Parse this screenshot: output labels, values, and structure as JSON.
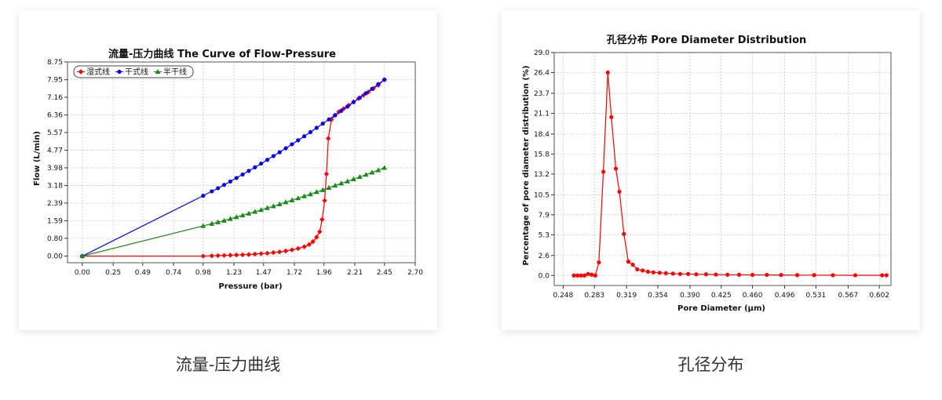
{
  "captions": [
    "流量-压力曲线",
    "孔径分布"
  ],
  "chart_data": [
    {
      "type": "line",
      "title": "流量-压力曲线 The Curve of Flow-Pressure",
      "xlabel": "Pressure (bar)",
      "ylabel": "Flow (L/min)",
      "xlim": [
        -0.12,
        2.7
      ],
      "ylim": [
        -0.3,
        8.75
      ],
      "xticks": [
        "0.00",
        "0.25",
        "0.49",
        "0.74",
        "0.98",
        "1.23",
        "1.47",
        "1.72",
        "1.96",
        "2.21",
        "2.45",
        "2.70"
      ],
      "yticks": [
        "0.00",
        "0.80",
        "1.59",
        "2.39",
        "3.18",
        "3.98",
        "4.77",
        "5.57",
        "6.36",
        "7.16",
        "7.95",
        "8.75"
      ],
      "legend_position": "top-left",
      "grid": true,
      "series": [
        {
          "name": "湿式线",
          "color": "#ff0000",
          "marker": "diamond",
          "x": [
            0.0,
            0.98,
            1.05,
            1.1,
            1.15,
            1.2,
            1.25,
            1.3,
            1.35,
            1.4,
            1.45,
            1.5,
            1.55,
            1.6,
            1.65,
            1.7,
            1.75,
            1.8,
            1.84,
            1.87,
            1.9,
            1.925,
            1.945,
            1.965,
            1.98,
            1.995,
            2.02,
            2.05,
            2.08,
            2.12,
            2.16,
            2.2,
            2.24,
            2.28,
            2.32,
            2.36,
            2.4,
            2.45
          ],
          "y": [
            0.0,
            0.0,
            0.01,
            0.02,
            0.03,
            0.04,
            0.05,
            0.06,
            0.07,
            0.09,
            0.11,
            0.13,
            0.16,
            0.19,
            0.23,
            0.28,
            0.34,
            0.42,
            0.52,
            0.65,
            0.85,
            1.1,
            1.65,
            2.5,
            3.7,
            5.3,
            6.15,
            6.35,
            6.5,
            6.65,
            6.8,
            6.95,
            7.1,
            7.25,
            7.4,
            7.55,
            7.7,
            7.95
          ]
        },
        {
          "name": "干式线",
          "color": "#0000ff",
          "marker": "circle",
          "x": [
            0.0,
            0.98,
            1.05,
            1.1,
            1.15,
            1.2,
            1.25,
            1.3,
            1.35,
            1.4,
            1.45,
            1.5,
            1.55,
            1.6,
            1.65,
            1.7,
            1.75,
            1.8,
            1.85,
            1.9,
            1.95,
            2.0,
            2.05,
            2.1,
            2.15,
            2.2,
            2.25,
            2.3,
            2.35,
            2.4,
            2.45
          ],
          "y": [
            0.0,
            2.72,
            2.92,
            3.06,
            3.21,
            3.36,
            3.52,
            3.68,
            3.84,
            4.0,
            4.17,
            4.34,
            4.51,
            4.68,
            4.86,
            5.04,
            5.22,
            5.4,
            5.59,
            5.78,
            5.97,
            6.16,
            6.35,
            6.55,
            6.74,
            6.94,
            7.14,
            7.34,
            7.54,
            7.75,
            7.95
          ]
        },
        {
          "name": "半干线",
          "color": "#1a8a1a",
          "marker": "triangle",
          "x": [
            0.0,
            0.98,
            1.05,
            1.1,
            1.15,
            1.2,
            1.25,
            1.3,
            1.35,
            1.4,
            1.45,
            1.5,
            1.55,
            1.6,
            1.65,
            1.7,
            1.75,
            1.8,
            1.85,
            1.9,
            1.95,
            2.0,
            2.05,
            2.1,
            2.15,
            2.2,
            2.25,
            2.3,
            2.35,
            2.4,
            2.45
          ],
          "y": [
            0.0,
            1.36,
            1.46,
            1.53,
            1.6,
            1.68,
            1.76,
            1.84,
            1.92,
            2.0,
            2.08,
            2.17,
            2.25,
            2.34,
            2.43,
            2.52,
            2.61,
            2.7,
            2.79,
            2.89,
            2.98,
            3.08,
            3.18,
            3.28,
            3.37,
            3.47,
            3.57,
            3.67,
            3.77,
            3.87,
            3.98
          ]
        }
      ]
    },
    {
      "type": "line",
      "title": "孔径分布 Pore Diameter Distribution",
      "xlabel": "Pore Diameter (μm)",
      "ylabel": "Percentage of pore diameter distribution (%)",
      "xlim": [
        0.238,
        0.615
      ],
      "ylim": [
        -1.3,
        29.0
      ],
      "xticks": [
        "0.248",
        "0.283",
        "0.319",
        "0.354",
        "0.390",
        "0.425",
        "0.460",
        "0.496",
        "0.531",
        "0.567",
        "0.602"
      ],
      "yticks": [
        "0.0",
        "2.6",
        "5.3",
        "7.9",
        "10.5",
        "13.2",
        "15.8",
        "18.4",
        "21.1",
        "23.7",
        "26.4",
        "29.0"
      ],
      "grid": true,
      "series": [
        {
          "color": "#ff0000",
          "marker": "circle",
          "x": [
            0.26,
            0.264,
            0.268,
            0.272,
            0.276,
            0.28,
            0.284,
            0.288,
            0.293,
            0.298,
            0.302,
            0.307,
            0.311,
            0.316,
            0.321,
            0.326,
            0.331,
            0.337,
            0.343,
            0.349,
            0.356,
            0.363,
            0.371,
            0.379,
            0.388,
            0.397,
            0.408,
            0.419,
            0.432,
            0.445,
            0.46,
            0.476,
            0.492,
            0.51,
            0.529,
            0.55,
            0.575,
            0.605,
            0.61
          ],
          "y": [
            0.0,
            0.0,
            0.0,
            0.0,
            0.2,
            0.1,
            0.0,
            1.7,
            13.5,
            26.4,
            20.6,
            13.9,
            10.9,
            5.4,
            1.8,
            1.4,
            0.8,
            0.65,
            0.5,
            0.4,
            0.35,
            0.3,
            0.25,
            0.2,
            0.2,
            0.15,
            0.15,
            0.12,
            0.1,
            0.1,
            0.08,
            0.08,
            0.07,
            0.05,
            0.05,
            0.04,
            0.03,
            0.03,
            0.03
          ]
        }
      ]
    }
  ]
}
